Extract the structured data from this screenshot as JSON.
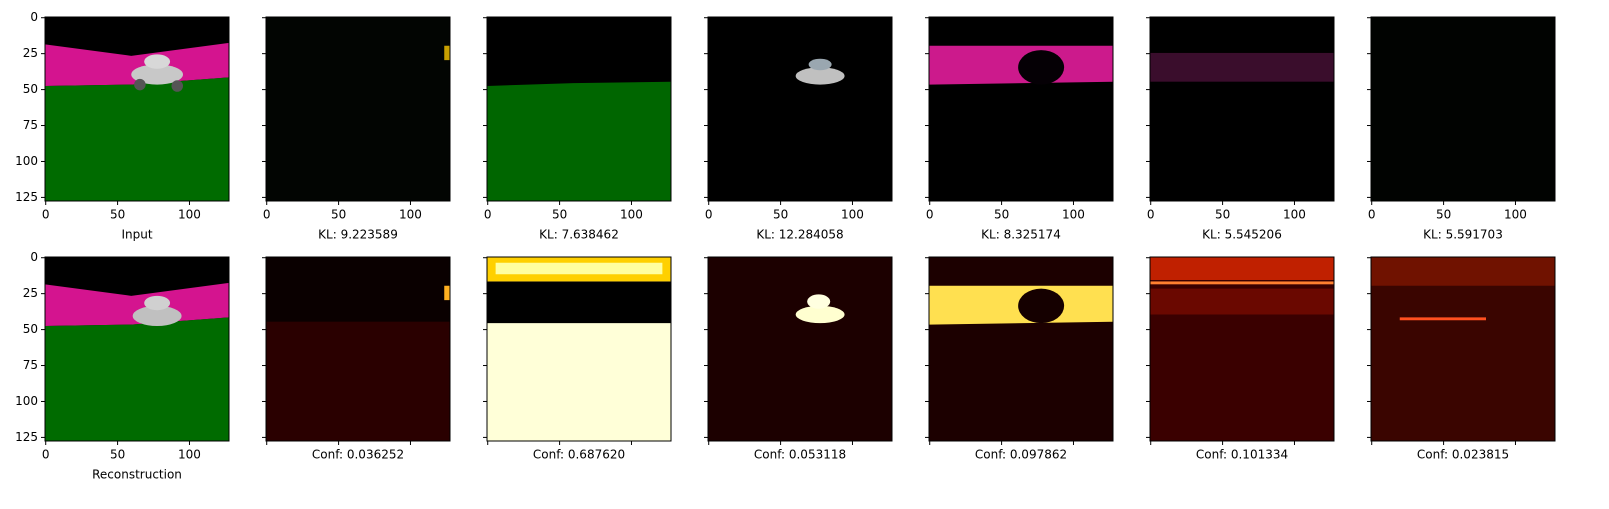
{
  "chart_data": {
    "type": "image_grid",
    "xlim": [
      -0.5,
      127.5
    ],
    "ylim": [
      127.5,
      -0.5
    ],
    "xticks": [
      0,
      50,
      100
    ],
    "yticks": [
      0,
      25,
      50,
      75,
      100,
      125
    ],
    "panels": [
      {
        "xlabel": "Input"
      },
      {
        "xlabel": "KL: 9.223589"
      },
      {
        "xlabel": "KL: 7.638462"
      },
      {
        "xlabel": "KL: 12.284058"
      },
      {
        "xlabel": "KL: 8.325174"
      },
      {
        "xlabel": "KL: 5.545206"
      },
      {
        "xlabel": "KL: 5.591703"
      },
      {
        "xlabel": "Reconstruction"
      },
      {
        "xlabel": "Conf: 0.036252"
      },
      {
        "xlabel": "Conf: 0.687620"
      },
      {
        "xlabel": "Conf: 0.053118"
      },
      {
        "xlabel": "Conf: 0.097862"
      },
      {
        "xlabel": "Conf: 0.101334"
      },
      {
        "xlabel": "Conf: 0.023815"
      }
    ]
  }
}
